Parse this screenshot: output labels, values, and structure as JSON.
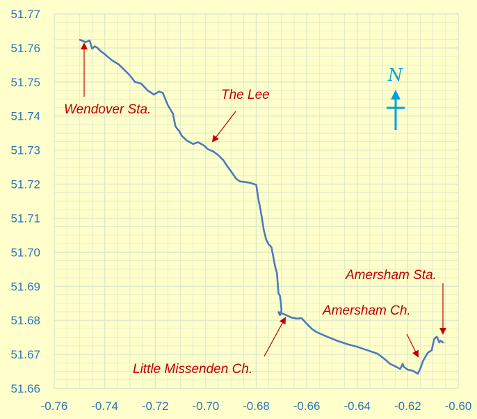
{
  "chart_data": {
    "type": "line",
    "title": "",
    "xlabel": "",
    "ylabel": "",
    "xlim": [
      -0.76,
      -0.6
    ],
    "ylim": [
      51.66,
      51.77
    ],
    "x_ticks": [
      "-0.76",
      "-0.74",
      "-0.72",
      "-0.70",
      "-0.68",
      "-0.66",
      "-0.64",
      "-0.62",
      "-0.60"
    ],
    "y_ticks": [
      "51.66",
      "51.67",
      "51.68",
      "51.69",
      "51.70",
      "51.71",
      "51.72",
      "51.73",
      "51.74",
      "51.75",
      "51.76",
      "51.77"
    ],
    "grid": true,
    "line_color": "#4a7ac0",
    "background_color": "#ffffcc",
    "grid_color": "#dde8c8",
    "annotation_color": "#c00000",
    "north_arrow_color": "#00a0e0",
    "north_label": "N",
    "series": [
      {
        "x": [
          -0.7498,
          -0.7475,
          -0.746,
          -0.745,
          -0.744,
          -0.743,
          -0.7415,
          -0.74,
          -0.739,
          -0.737,
          -0.7345,
          -0.732,
          -0.73,
          -0.728,
          -0.7255,
          -0.723,
          -0.7205,
          -0.7185,
          -0.717,
          -0.715,
          -0.713,
          -0.712,
          -0.711,
          -0.7105,
          -0.7095,
          -0.7075,
          -0.705,
          -0.703,
          -0.701,
          -0.699,
          -0.697,
          -0.695,
          -0.693,
          -0.6915,
          -0.69,
          -0.688,
          -0.6865,
          -0.6845,
          -0.6825,
          -0.68,
          -0.679,
          -0.6785,
          -0.6778,
          -0.677,
          -0.676,
          -0.675,
          -0.674,
          -0.6732,
          -0.6725,
          -0.6718,
          -0.6714,
          -0.6712,
          -0.6706,
          -0.6702,
          -0.67,
          -0.6706,
          -0.6712,
          -0.669,
          -0.666,
          -0.664,
          -0.662,
          -0.66,
          -0.658,
          -0.656,
          -0.652,
          -0.648,
          -0.644,
          -0.64,
          -0.636,
          -0.632,
          -0.629,
          -0.627,
          -0.625,
          -0.623,
          -0.622,
          -0.6215,
          -0.62,
          -0.618,
          -0.616,
          -0.615,
          -0.614,
          -0.612,
          -0.6105,
          -0.61,
          -0.6095,
          -0.6085,
          -0.6075,
          -0.607,
          -0.606
        ],
        "y": [
          51.7624,
          51.7617,
          51.7622,
          51.7598,
          51.7605,
          51.7601,
          51.759,
          51.7582,
          51.7575,
          51.7563,
          51.7552,
          51.7534,
          51.7519,
          51.75,
          51.7495,
          51.7475,
          51.7463,
          51.7472,
          51.7468,
          51.7432,
          51.7407,
          51.737,
          51.736,
          51.7356,
          51.7342,
          51.7328,
          51.7318,
          51.7323,
          51.7315,
          51.7302,
          51.7296,
          51.7285,
          51.727,
          51.7253,
          51.7238,
          51.7216,
          51.7208,
          51.7206,
          51.7204,
          51.7198,
          51.715,
          51.7133,
          51.7103,
          51.7065,
          51.7036,
          51.7022,
          51.7015,
          51.6985,
          51.6958,
          51.6939,
          51.69,
          51.688,
          51.6872,
          51.6848,
          51.6828,
          51.6815,
          51.6824,
          51.6818,
          51.6808,
          51.6805,
          51.6806,
          51.679,
          51.6775,
          51.6765,
          51.6752,
          51.674,
          51.673,
          51.6722,
          51.6712,
          51.6702,
          51.6685,
          51.6672,
          51.6665,
          51.6657,
          51.6672,
          51.6663,
          51.6655,
          51.6652,
          51.6643,
          51.6658,
          51.668,
          51.6705,
          51.6712,
          51.673,
          51.6745,
          51.6752,
          51.6735,
          51.674,
          51.6735
        ]
      }
    ],
    "annotations": [
      {
        "text": "Wendover Sta."
      },
      {
        "text": "The Lee"
      },
      {
        "text": "Little Missenden Ch."
      },
      {
        "text": "Amersham Ch."
      },
      {
        "text": "Amersham Sta."
      }
    ]
  }
}
